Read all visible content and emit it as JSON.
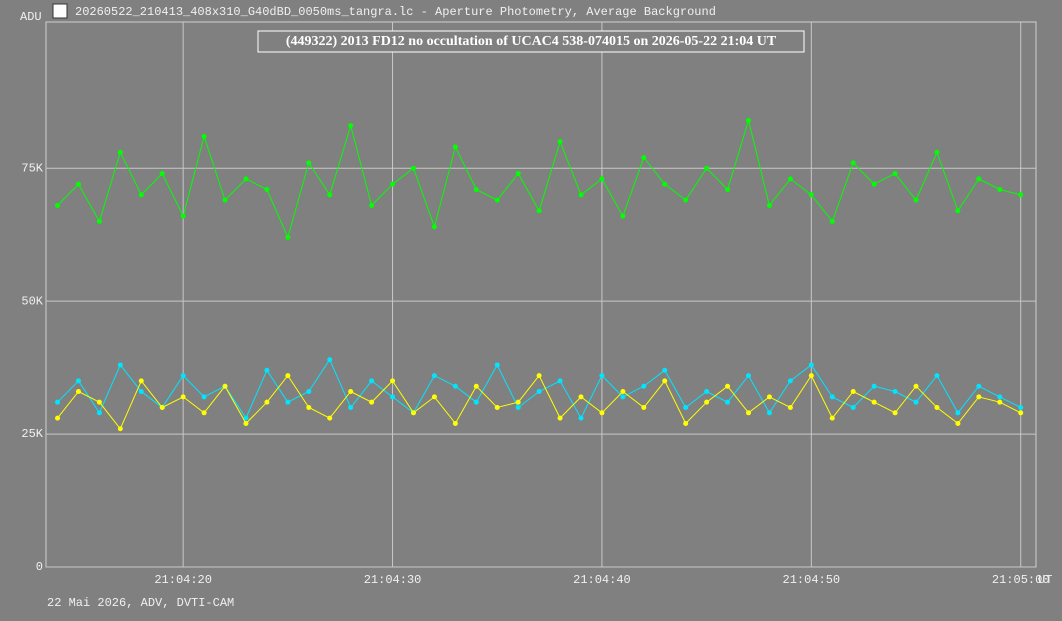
{
  "window_title": "20260522_210413_408x310_G40dBD_0050ms_tangra.lc - Aperture Photometry, Average Background",
  "footer": "22 Mai 2026, ADV, DVTI-CAM",
  "chart_data": {
    "type": "line",
    "title": "(449322) 2013 FD12 no occultation of UCAC4 538-074015 on 2026-05-22  21:04 UT",
    "y_label": "ADU",
    "x_label": "UT",
    "x": [
      75854,
      75855,
      75856,
      75857,
      75858,
      75859,
      75860,
      75861,
      75862,
      75863,
      75864,
      75865,
      75866,
      75867,
      75868,
      75869,
      75870,
      75871,
      75872,
      75873,
      75874,
      75875,
      75876,
      75877,
      75878,
      75879,
      75880,
      75881,
      75882,
      75883,
      75884,
      75885,
      75886,
      75887,
      75888,
      75889,
      75890,
      75891,
      75892,
      75893,
      75894,
      75895,
      75896,
      75897,
      75898,
      75899,
      75900
    ],
    "series": [
      {
        "color": "#00ff00",
        "values": [
          68000,
          72000,
          65000,
          78000,
          70000,
          74000,
          66000,
          81000,
          69000,
          73000,
          71000,
          62000,
          76000,
          70000,
          83000,
          68000,
          72000,
          75000,
          64000,
          79000,
          71000,
          69000,
          74000,
          67000,
          80000,
          70000,
          73000,
          66000,
          77000,
          72000,
          69000,
          75000,
          71000,
          84000,
          68000,
          73000,
          70000,
          65000,
          76000,
          72000,
          74000,
          69000,
          78000,
          67000,
          73000,
          71000,
          70000
        ]
      },
      {
        "color": "#00e5ff",
        "values": [
          31000,
          35000,
          29000,
          38000,
          33000,
          30000,
          36000,
          32000,
          34000,
          28000,
          37000,
          31000,
          33000,
          39000,
          30000,
          35000,
          32000,
          29000,
          36000,
          34000,
          31000,
          38000,
          30000,
          33000,
          35000,
          28000,
          36000,
          32000,
          34000,
          37000,
          30000,
          33000,
          31000,
          36000,
          29000,
          35000,
          38000,
          32000,
          30000,
          34000,
          33000,
          31000,
          36000,
          29000,
          34000,
          32000,
          30000
        ]
      },
      {
        "color": "#ffff00",
        "values": [
          28000,
          33000,
          31000,
          26000,
          35000,
          30000,
          32000,
          29000,
          34000,
          27000,
          31000,
          36000,
          30000,
          28000,
          33000,
          31000,
          35000,
          29000,
          32000,
          27000,
          34000,
          30000,
          31000,
          36000,
          28000,
          32000,
          29000,
          33000,
          30000,
          35000,
          27000,
          31000,
          34000,
          29000,
          32000,
          30000,
          36000,
          28000,
          33000,
          31000,
          29000,
          34000,
          30000,
          27000,
          32000,
          31000,
          29000
        ]
      }
    ],
    "xlim": [
      75853.45,
      75900.73
    ],
    "xticks": [
      {
        "value": 75860,
        "label": "21:04:20"
      },
      {
        "value": 75870,
        "label": "21:04:30"
      },
      {
        "value": 75880,
        "label": "21:04:40"
      },
      {
        "value": 75890,
        "label": "21:04:50"
      },
      {
        "value": 75900,
        "label": "21:05:00"
      }
    ],
    "ylim": [
      0,
      102500
    ],
    "yticks": [
      0,
      {
        "value": 25000,
        "label": "25K"
      },
      {
        "value": 50000,
        "label": "50K"
      },
      {
        "value": 75000,
        "label": "75K"
      }
    ],
    "grid": true
  }
}
